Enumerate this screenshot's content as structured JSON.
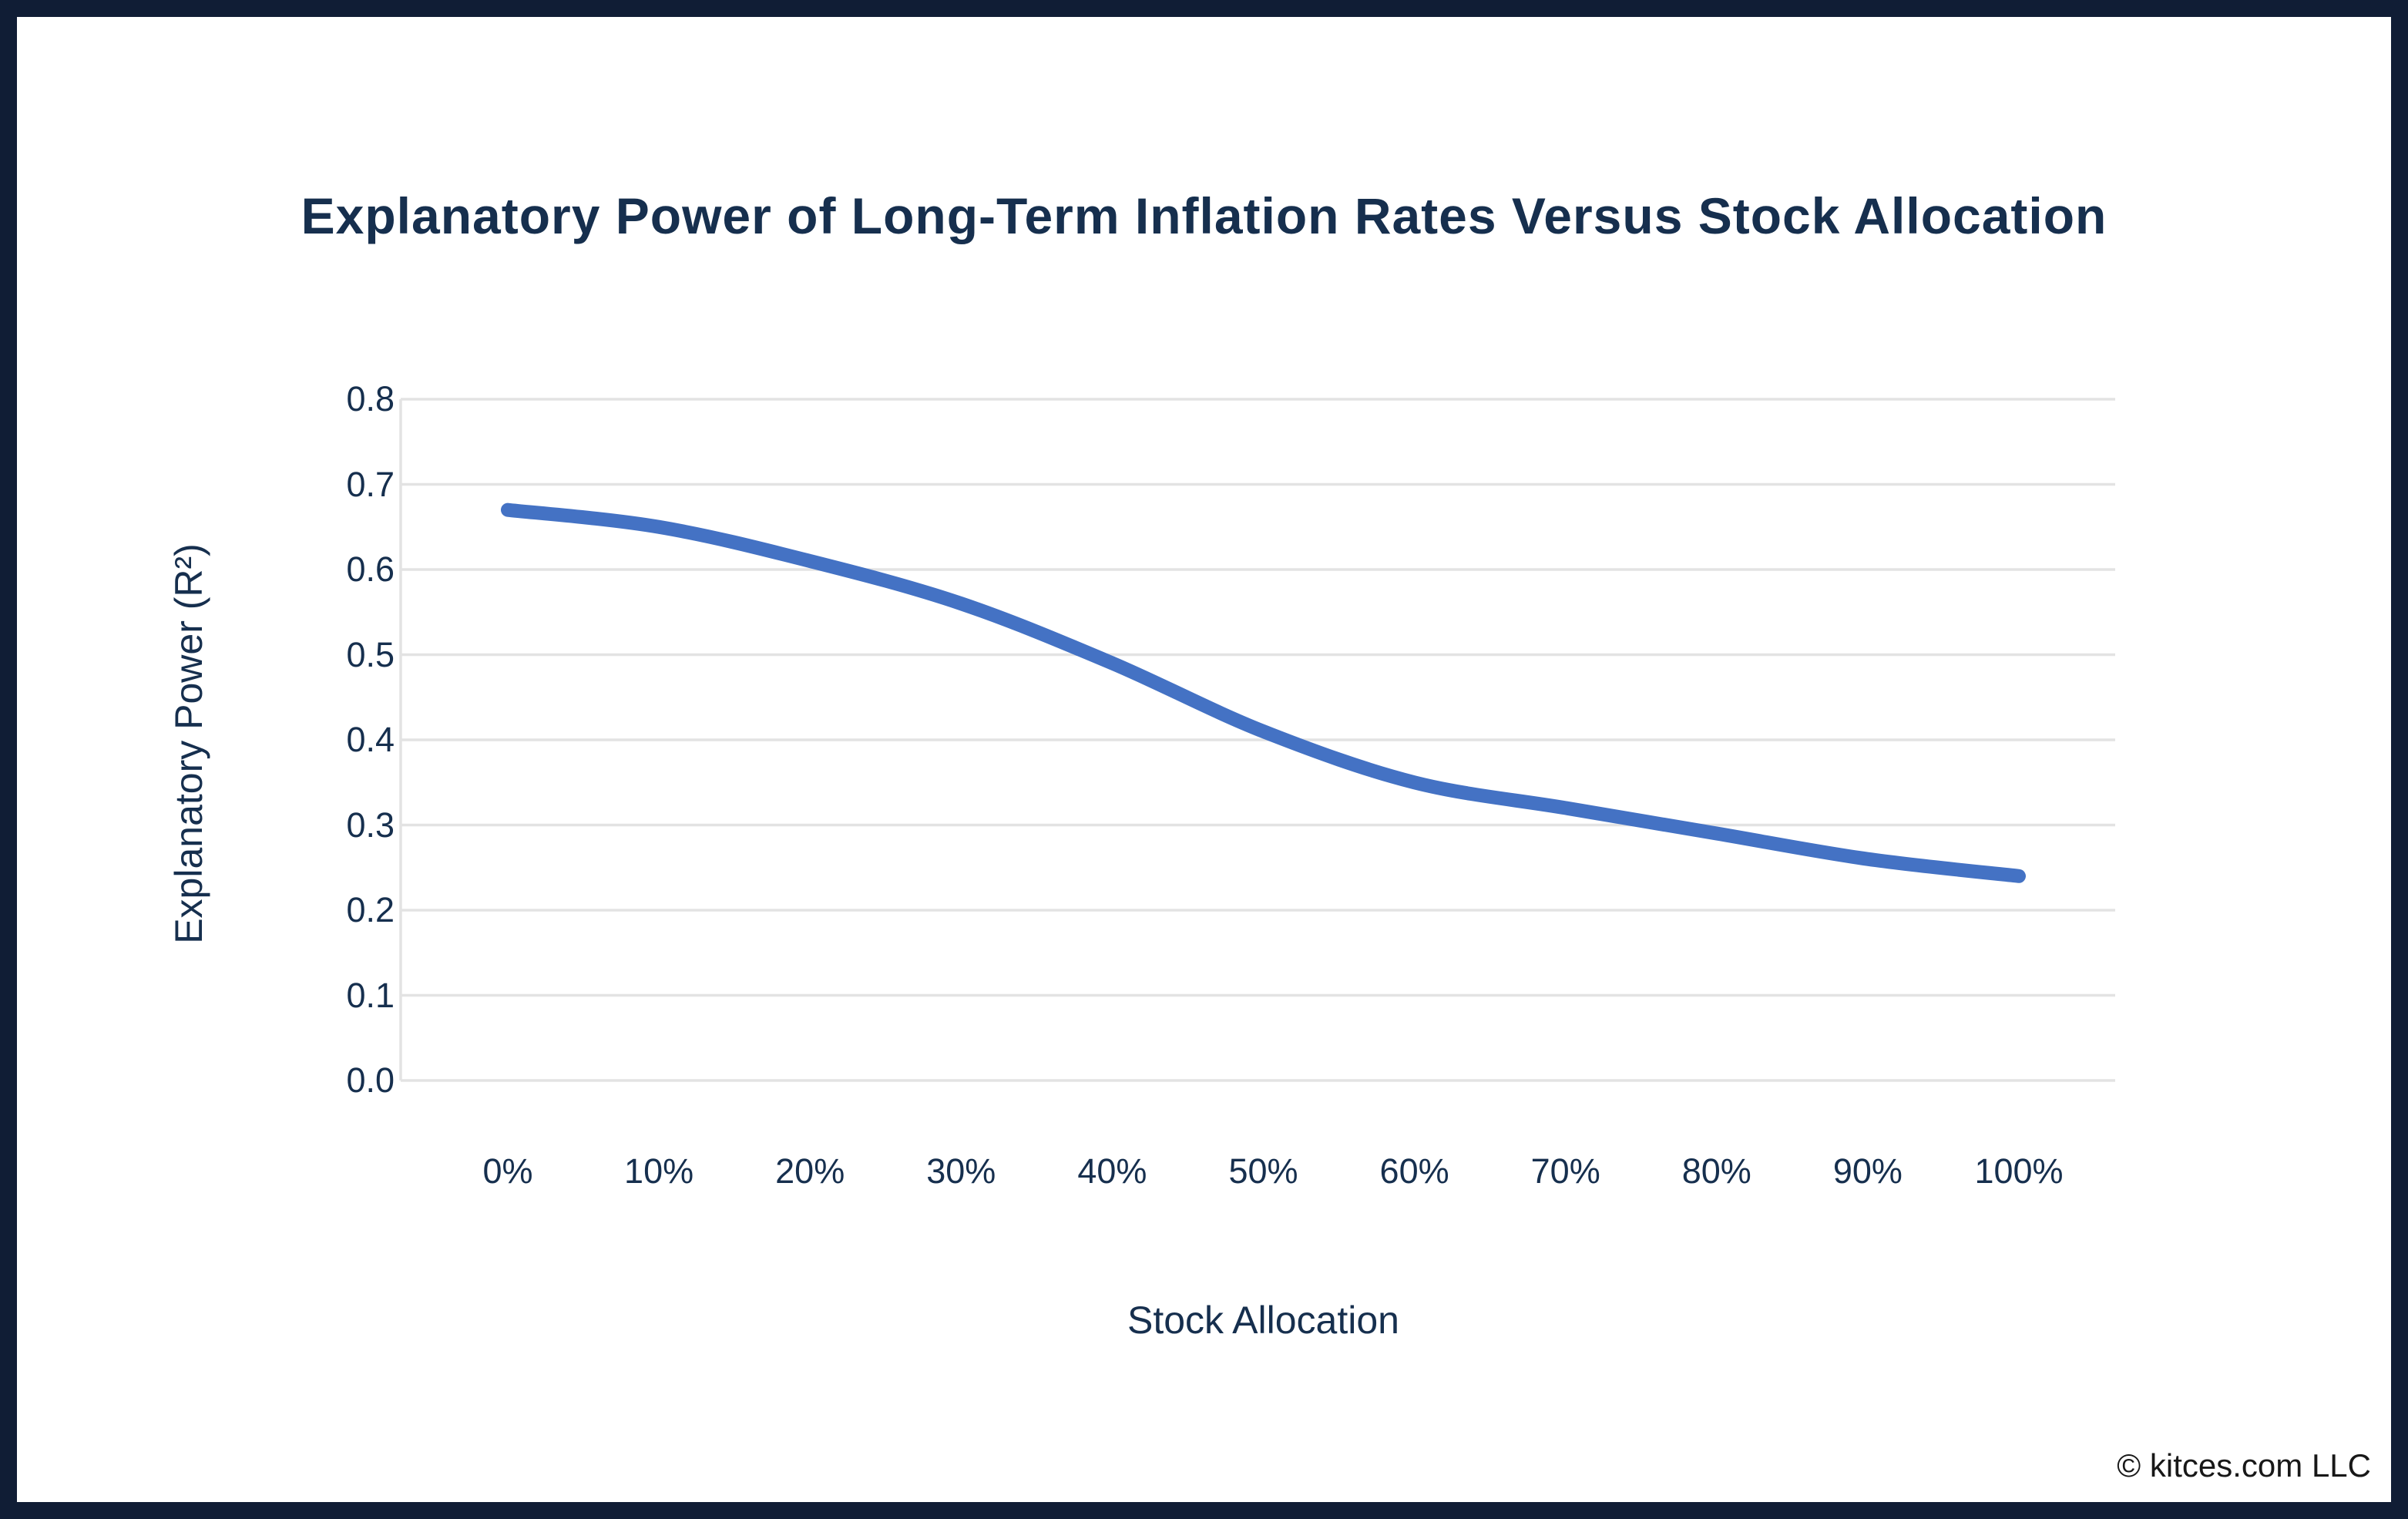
{
  "title": "Explanatory Power of Long-Term Inflation Rates Versus Stock Allocation",
  "footer": {
    "copyright": "© kitces.com LLC"
  },
  "colors": {
    "frame_border": "#101d35",
    "text_navy": "#162f4e",
    "line_blue": "#4472C4",
    "gridline_gray": "#e3e3e3"
  },
  "chart_data": {
    "type": "line",
    "title": "Explanatory Power of Long-Term Inflation Rates Versus Stock Allocation",
    "xlabel": "Stock Allocation",
    "ylabel": "Explanatory Power (R²)",
    "categories": [
      "0%",
      "10%",
      "20%",
      "30%",
      "40%",
      "50%",
      "60%",
      "70%",
      "80%",
      "90%",
      "100%"
    ],
    "values": [
      0.67,
      0.65,
      0.61,
      0.56,
      0.49,
      0.41,
      0.35,
      0.32,
      0.29,
      0.26,
      0.24
    ],
    "ylim": [
      0.0,
      0.8
    ],
    "yticks": [
      "0.0",
      "0.1",
      "0.2",
      "0.3",
      "0.4",
      "0.5",
      "0.6",
      "0.7",
      "0.8"
    ],
    "grid": "horizontal",
    "legend": "none",
    "line_color": "#4472C4",
    "line_smoothing": "spline"
  }
}
